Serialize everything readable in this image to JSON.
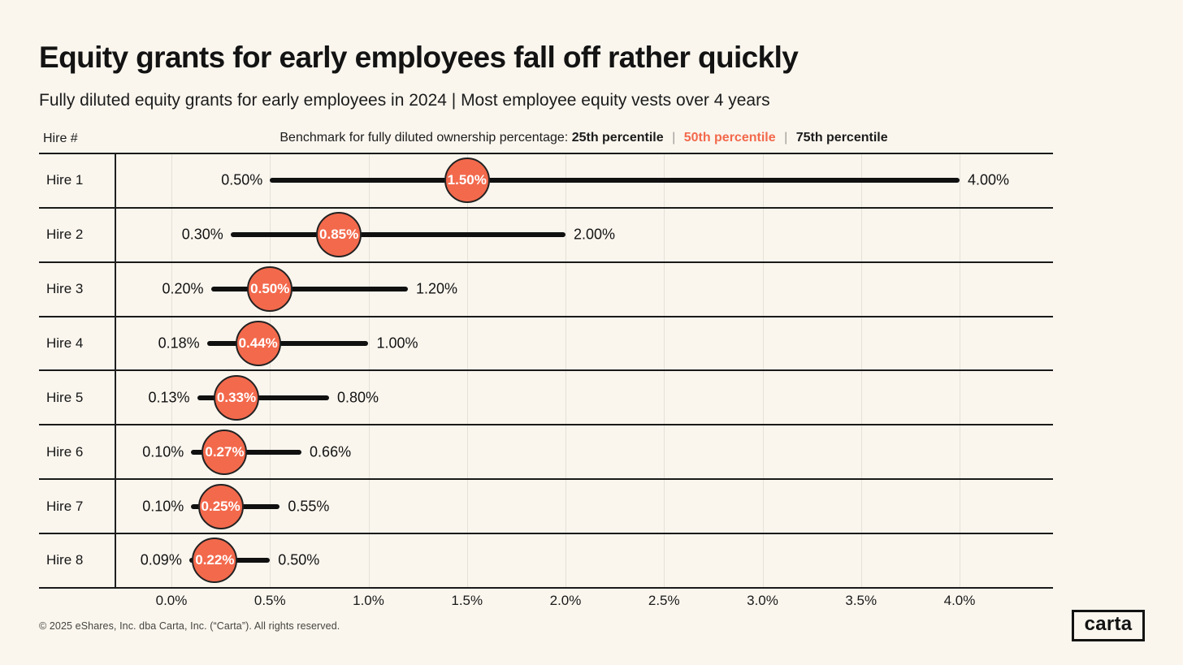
{
  "page": {
    "title": "Equity grants for early employees fall off rather quickly",
    "subtitle": "Fully diluted equity grants for early employees in 2024 | Most employee equity vests over 4 years",
    "footer": "© 2025 eShares, Inc. dba Carta, Inc. (“Carta”). All rights reserved.",
    "logo_text": "carta"
  },
  "legend": {
    "hire_column_label": "Hire #",
    "prefix": "Benchmark for fully diluted ownership percentage:",
    "p25_label": "25th percentile",
    "p50_label": "50th percentile",
    "p75_label": "75th percentile",
    "separator": "|"
  },
  "colors": {
    "background": "#FAF6EE",
    "accent_orange": "#F3694C",
    "ink": "#161616",
    "gridline": "#E4E1D8",
    "marker_text": "#FFFFFF"
  },
  "chart_data": {
    "type": "dumbbell",
    "title": "Equity grants for early employees fall off rather quickly",
    "subtitle": "Fully diluted equity grants for early employees in 2024 | Most employee equity vests over 4 years",
    "categories": [
      "Hire 1",
      "Hire 2",
      "Hire 3",
      "Hire 4",
      "Hire 5",
      "Hire 6",
      "Hire 7",
      "Hire 8"
    ],
    "series": [
      {
        "name": "25th percentile",
        "values": [
          0.5,
          0.3,
          0.2,
          0.18,
          0.13,
          0.1,
          0.1,
          0.09
        ]
      },
      {
        "name": "50th percentile",
        "values": [
          1.5,
          0.85,
          0.5,
          0.44,
          0.33,
          0.27,
          0.25,
          0.22
        ]
      },
      {
        "name": "75th percentile",
        "values": [
          4.0,
          2.0,
          1.2,
          1.0,
          0.8,
          0.66,
          0.55,
          0.5
        ]
      }
    ],
    "value_label_format": "0.00%",
    "x_ticks": [
      "0.0%",
      "0.5%",
      "1.0%",
      "1.5%",
      "2.0%",
      "2.5%",
      "3.0%",
      "3.5%",
      "4.0%"
    ],
    "xlim": [
      0.0,
      4.0
    ],
    "xlabel": "",
    "ylabel": "Hire #",
    "grid": "vertical-only",
    "legend_position": "top"
  }
}
